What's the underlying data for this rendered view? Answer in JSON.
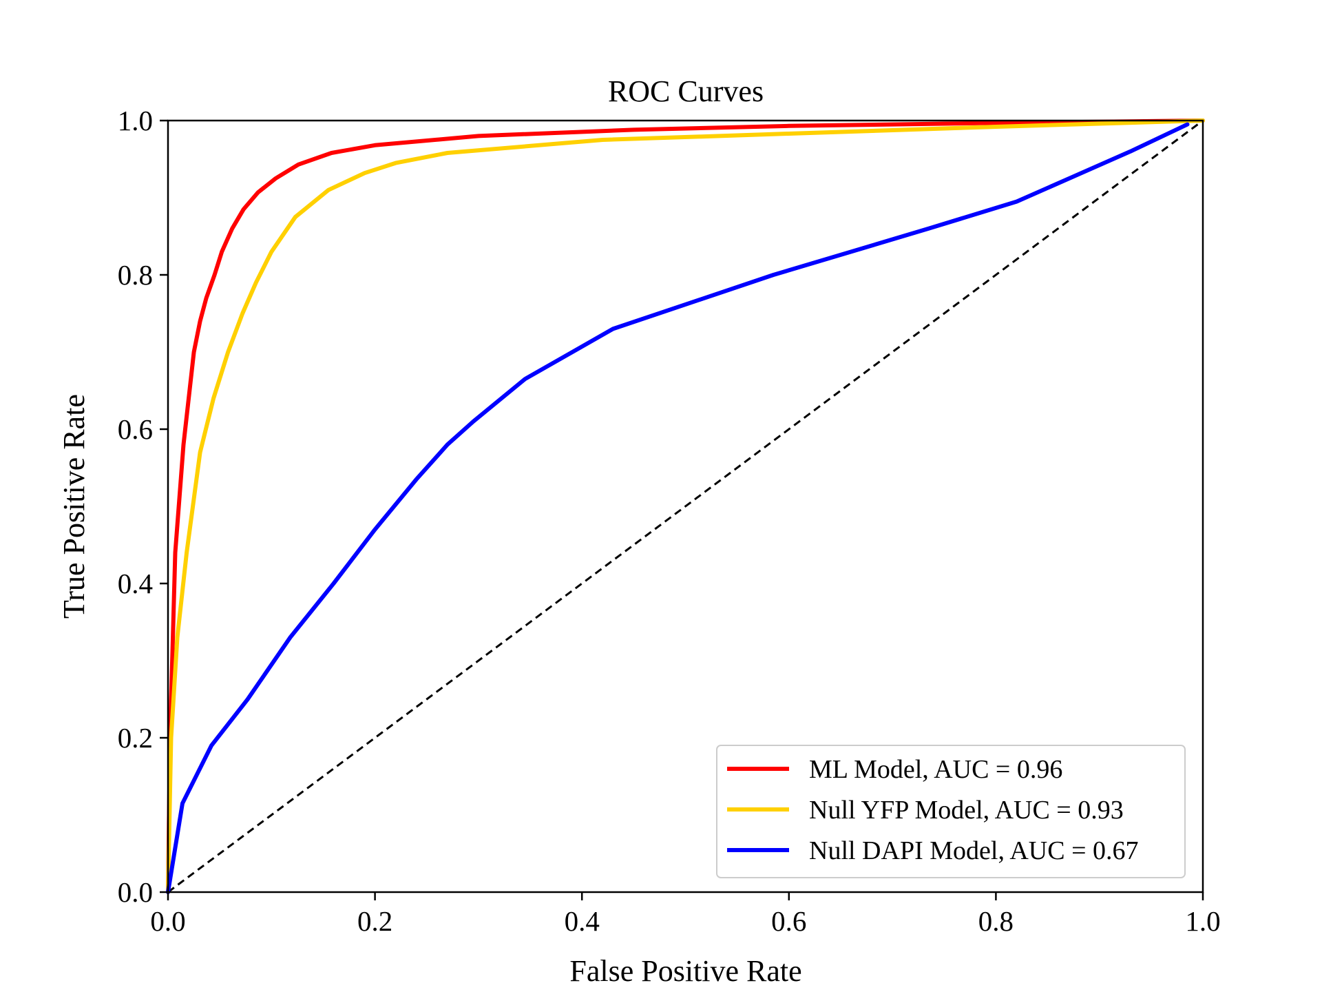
{
  "chart_data": {
    "type": "line",
    "title": "ROC Curves",
    "xlabel": "False Positive Rate",
    "ylabel": "True Positive Rate",
    "xlim": [
      0,
      1
    ],
    "ylim": [
      0,
      1
    ],
    "xticks": [
      "0.0",
      "0.2",
      "0.4",
      "0.6",
      "0.8",
      "1.0"
    ],
    "yticks": [
      "0.0",
      "0.2",
      "0.4",
      "0.6",
      "0.8",
      "1.0"
    ],
    "grid": false,
    "legend_position": "lower-right",
    "series": [
      {
        "name": "ML Model, AUC = 0.96",
        "color": "#ff0000",
        "x": [
          0,
          0.002,
          0.007,
          0.015,
          0.025,
          0.031,
          0.037,
          0.045,
          0.052,
          0.062,
          0.073,
          0.087,
          0.104,
          0.126,
          0.158,
          0.2,
          0.3,
          0.45,
          0.6,
          0.8,
          1.0
        ],
        "y": [
          0,
          0.2,
          0.44,
          0.58,
          0.7,
          0.74,
          0.77,
          0.8,
          0.83,
          0.86,
          0.885,
          0.907,
          0.925,
          0.943,
          0.958,
          0.968,
          0.98,
          0.988,
          0.993,
          0.997,
          1.0
        ]
      },
      {
        "name": "Null YFP Model, AUC = 0.93",
        "color": "#ffd000",
        "x": [
          0,
          0.003,
          0.009,
          0.018,
          0.031,
          0.044,
          0.058,
          0.072,
          0.085,
          0.1,
          0.123,
          0.155,
          0.19,
          0.22,
          0.27,
          0.42,
          0.6,
          0.8,
          1.0
        ],
        "y": [
          0,
          0.2,
          0.33,
          0.44,
          0.57,
          0.64,
          0.7,
          0.75,
          0.79,
          0.83,
          0.875,
          0.91,
          0.932,
          0.945,
          0.958,
          0.975,
          0.983,
          0.992,
          1.0
        ]
      },
      {
        "name": "Null DAPI Model, AUC = 0.67",
        "color": "#0000ff",
        "x": [
          0,
          0.014,
          0.042,
          0.077,
          0.118,
          0.16,
          0.2,
          0.24,
          0.27,
          0.295,
          0.345,
          0.43,
          0.585,
          0.735,
          0.82,
          0.93,
          0.985
        ],
        "y": [
          0,
          0.115,
          0.19,
          0.25,
          0.33,
          0.4,
          0.47,
          0.535,
          0.58,
          0.61,
          0.665,
          0.73,
          0.8,
          0.86,
          0.895,
          0.96,
          0.995
        ]
      }
    ],
    "reference_line": {
      "style": "dashed",
      "color": "#000000",
      "x": [
        0,
        1
      ],
      "y": [
        0,
        1
      ]
    }
  }
}
